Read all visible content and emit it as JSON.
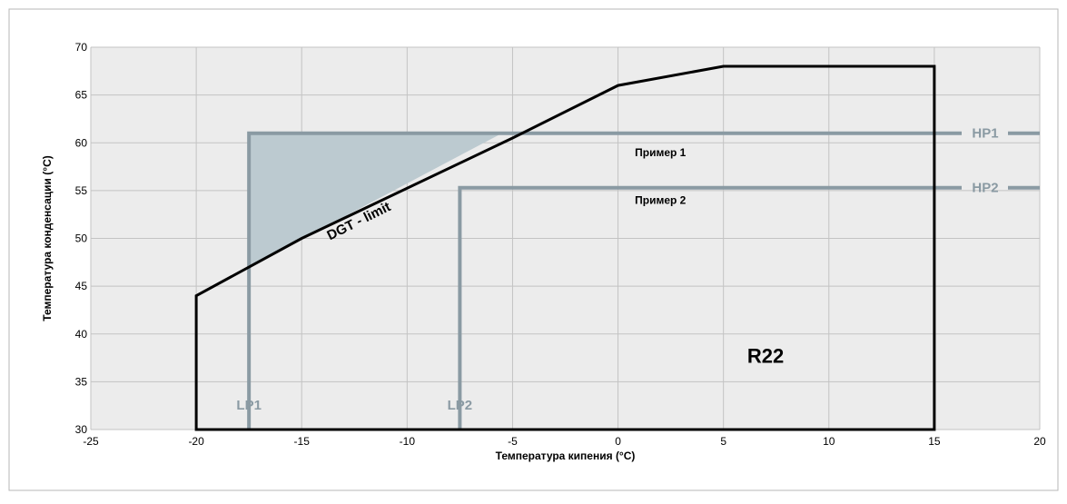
{
  "chart_data": {
    "type": "line",
    "xlabel": "Температура кипения (°C)",
    "ylabel": "Температура конденсации (°C)",
    "xlim": [
      -25,
      20
    ],
    "ylim": [
      30,
      70
    ],
    "x_ticks": [
      "-25",
      "-20",
      "-15",
      "-10",
      "-5",
      "0",
      "5",
      "10",
      "15",
      "20"
    ],
    "y_ticks": [
      "30",
      "35",
      "40",
      "45",
      "50",
      "55",
      "60",
      "65",
      "70"
    ],
    "grid": true,
    "refrigerant_label": "R22",
    "envelope": {
      "name": "",
      "points": [
        [
          -20,
          30
        ],
        [
          -20,
          44
        ],
        [
          -15,
          50
        ],
        [
          -5,
          60.5
        ],
        [
          0,
          66
        ],
        [
          5,
          68
        ],
        [
          15,
          68
        ],
        [
          15,
          30
        ]
      ]
    },
    "dgt_limit_label": "DGT - limit",
    "shaded_region": [
      [
        -17.5,
        47
      ],
      [
        -17.5,
        61
      ],
      [
        -5.5,
        61
      ]
    ],
    "examples": [
      {
        "name": "Пример 1",
        "lp_label": "LP1",
        "hp_label": "HP1",
        "lp_x": -17.5,
        "hp_y": 61,
        "label_at": [
          0.8,
          59
        ]
      },
      {
        "name": "Пример 2",
        "lp_label": "LP2",
        "hp_label": "HP2",
        "lp_x": -7.5,
        "hp_y": 55.3,
        "label_at": [
          0.8,
          54
        ]
      }
    ]
  }
}
